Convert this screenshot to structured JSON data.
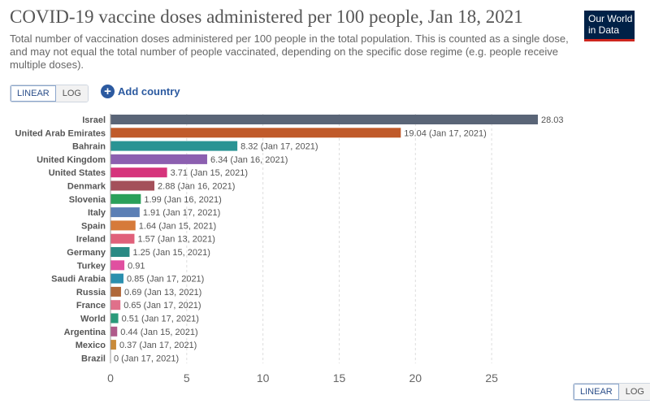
{
  "header": {
    "title": "COVID-19 vaccine doses administered per 100 people, Jan 18, 2021",
    "subtitle": "Total number of vaccination doses administered per 100 people in the total population. This is counted as a single dose, and may not equal the total number of people vaccinated, depending on the specific dose regime (e.g. people receive multiple doses).",
    "logo_line1": "Our World",
    "logo_line2": "in Data"
  },
  "controls": {
    "linear_label": "LINEAR",
    "log_label": "LOG",
    "add_country_label": "Add country",
    "add_icon_glyph": "+"
  },
  "chart_data": {
    "type": "bar",
    "orientation": "horizontal",
    "title": "COVID-19 vaccine doses administered per 100 people, Jan 18, 2021",
    "xlim": [
      0,
      28.03
    ],
    "xticks": [
      0,
      5,
      10,
      15,
      20,
      25
    ],
    "grid": true,
    "categories": [
      "Israel",
      "United Arab Emirates",
      "Bahrain",
      "United Kingdom",
      "United States",
      "Denmark",
      "Slovenia",
      "Italy",
      "Spain",
      "Ireland",
      "Germany",
      "Turkey",
      "Saudi Arabia",
      "Russia",
      "France",
      "World",
      "Argentina",
      "Mexico",
      "Brazil"
    ],
    "values": [
      28.03,
      19.04,
      8.32,
      6.34,
      3.71,
      2.88,
      1.99,
      1.91,
      1.64,
      1.57,
      1.25,
      0.91,
      0.85,
      0.69,
      0.65,
      0.51,
      0.44,
      0.37,
      0
    ],
    "labels": [
      "28.03",
      "19.04 (Jan 17, 2021)",
      "8.32 (Jan 17, 2021)",
      "6.34 (Jan 16, 2021)",
      "3.71 (Jan 15, 2021)",
      "2.88 (Jan 16, 2021)",
      "1.99 (Jan 16, 2021)",
      "1.91 (Jan 17, 2021)",
      "1.64 (Jan 15, 2021)",
      "1.57 (Jan 13, 2021)",
      "1.25 (Jan 15, 2021)",
      "0.91",
      "0.85 (Jan 17, 2021)",
      "0.69 (Jan 13, 2021)",
      "0.65 (Jan 17, 2021)",
      "0.51 (Jan 17, 2021)",
      "0.44 (Jan 15, 2021)",
      "0.37 (Jan 17, 2021)",
      "0 (Jan 17, 2021)"
    ],
    "colors": [
      "#5a6577",
      "#c05a2a",
      "#2a9494",
      "#8c5fb0",
      "#d6347c",
      "#a4505a",
      "#2aa05a",
      "#5b7fb5",
      "#d67a3a",
      "#e0607a",
      "#2a8a84",
      "#e04fa0",
      "#2a8fae",
      "#b0683a",
      "#e0708a",
      "#2a9a7a",
      "#b05a8a",
      "#c98a3a",
      "#8a5a5a"
    ]
  }
}
